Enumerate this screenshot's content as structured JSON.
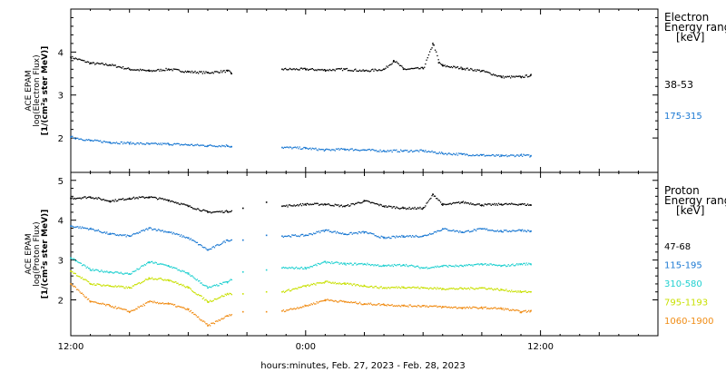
{
  "colors": {
    "axis": "#000000",
    "background": "#ffffff",
    "black": "#000000",
    "blue": "#1a78d2",
    "cyan": "#20d0d0",
    "yellow": "#c8e000",
    "orange": "#f08c14"
  },
  "figure": {
    "xlabel": "hours:minutes, Feb. 27, 2023 - Feb. 28, 2023",
    "x_tick_labels": [
      "12:00",
      "0:00",
      "12:00"
    ]
  },
  "chart_data": [
    {
      "type": "scatter",
      "panel": "electron",
      "ylabel": [
        "ACE EPAM",
        "log(Electron Flux)",
        "[1/(cm²s ster MeV)]"
      ],
      "legend_title": [
        "Electron",
        "Energy range",
        "[keV]"
      ],
      "legend_placement": "right",
      "grid": false,
      "xlim": [
        -12,
        18
      ],
      "ylim": [
        1.2,
        5.0
      ],
      "y_ticks": [
        2,
        3,
        4
      ],
      "x_ticks": [
        -12,
        0,
        12
      ],
      "x_unit": "hours relative to Feb. 28, 2023 0:00",
      "series": [
        {
          "name": "38-53",
          "color": "#000000",
          "x": [
            -12,
            -11,
            -10,
            -9,
            -8,
            -7,
            -6,
            -5,
            -4,
            -3.8,
            -1.2,
            0,
            1,
            2,
            3,
            4,
            4.5,
            5,
            6,
            6.5,
            6.8,
            7,
            8,
            9,
            10,
            11,
            11.5
          ],
          "y": [
            3.88,
            3.74,
            3.7,
            3.6,
            3.56,
            3.6,
            3.54,
            3.52,
            3.56,
            3.5,
            3.6,
            3.6,
            3.58,
            3.6,
            3.56,
            3.6,
            3.8,
            3.6,
            3.62,
            4.2,
            3.75,
            3.68,
            3.62,
            3.56,
            3.42,
            3.42,
            3.46
          ]
        },
        {
          "name": "175-315",
          "color": "#1a78d2",
          "x": [
            -12,
            -11,
            -10,
            -9,
            -8,
            -7,
            -6,
            -5,
            -4,
            -3.8,
            -1.2,
            0,
            1,
            2,
            3,
            4,
            5,
            6,
            7,
            8,
            9,
            10,
            11,
            11.5
          ],
          "y": [
            2.02,
            1.94,
            1.9,
            1.88,
            1.86,
            1.86,
            1.84,
            1.82,
            1.82,
            1.8,
            1.78,
            1.76,
            1.72,
            1.74,
            1.72,
            1.7,
            1.7,
            1.7,
            1.64,
            1.62,
            1.6,
            1.58,
            1.6,
            1.58
          ]
        }
      ]
    },
    {
      "type": "scatter",
      "panel": "proton",
      "ylabel": [
        "ACE EPAM",
        "log(Proton Flux)",
        "[1/(cm²s ster MeV)]"
      ],
      "legend_title": [
        "Proton",
        "Energy range",
        "[keV]"
      ],
      "legend_placement": "right",
      "grid": false,
      "xlim": [
        -12,
        18
      ],
      "ylim": [
        1.1,
        5.2
      ],
      "y_ticks": [
        2,
        3,
        4,
        5
      ],
      "x_ticks": [
        -12,
        0,
        12
      ],
      "x_unit": "hours relative to Feb. 28, 2023 0:00",
      "series": [
        {
          "name": "47-68",
          "color": "#000000",
          "x": [
            -12,
            -11,
            -10,
            -9,
            -8,
            -7,
            -6,
            -5,
            -4,
            -3.2,
            -2,
            -1.2,
            0,
            1,
            2,
            3,
            4,
            5,
            6,
            6.5,
            7,
            8,
            9,
            10,
            11,
            11.5
          ],
          "y": [
            4.55,
            4.58,
            4.48,
            4.55,
            4.58,
            4.5,
            4.35,
            4.2,
            4.22,
            4.3,
            4.45,
            4.35,
            4.4,
            4.4,
            4.35,
            4.48,
            4.35,
            4.3,
            4.3,
            4.65,
            4.38,
            4.45,
            4.38,
            4.4,
            4.4,
            4.38
          ]
        },
        {
          "name": "115-195",
          "color": "#1a78d2",
          "x": [
            -12,
            -11,
            -10,
            -9,
            -8,
            -7,
            -6,
            -5,
            -4,
            -3.2,
            -2,
            -1.2,
            0,
            1,
            2,
            3,
            4,
            5,
            6,
            7,
            8,
            9,
            10,
            11,
            11.5
          ],
          "y": [
            3.85,
            3.78,
            3.65,
            3.6,
            3.8,
            3.7,
            3.55,
            3.25,
            3.5,
            3.5,
            3.62,
            3.6,
            3.62,
            3.75,
            3.65,
            3.7,
            3.55,
            3.6,
            3.6,
            3.78,
            3.7,
            3.78,
            3.72,
            3.75,
            3.72
          ]
        },
        {
          "name": "310-580",
          "color": "#20d0d0",
          "x": [
            -12,
            -11,
            -10,
            -9,
            -8,
            -7,
            -6,
            -5,
            -4,
            -3.2,
            -2,
            -1.2,
            0,
            1,
            2,
            3,
            4,
            5,
            6,
            7,
            8,
            9,
            10,
            11,
            11.5
          ],
          "y": [
            3.05,
            2.75,
            2.7,
            2.65,
            2.95,
            2.85,
            2.65,
            2.3,
            2.45,
            2.7,
            2.75,
            2.8,
            2.8,
            2.95,
            2.9,
            2.9,
            2.85,
            2.88,
            2.8,
            2.85,
            2.85,
            2.9,
            2.85,
            2.9,
            2.9
          ]
        },
        {
          "name": "795-1193",
          "color": "#c8e000",
          "x": [
            -12,
            -11,
            -10,
            -9,
            -8,
            -7,
            -6,
            -5,
            -4,
            -3.2,
            -2,
            -1.2,
            0,
            1,
            2,
            3,
            4,
            5,
            6,
            7,
            8,
            9,
            10,
            11,
            11.5
          ],
          "y": [
            2.72,
            2.4,
            2.35,
            2.3,
            2.55,
            2.5,
            2.3,
            1.95,
            2.15,
            2.15,
            2.2,
            2.2,
            2.35,
            2.45,
            2.4,
            2.35,
            2.3,
            2.32,
            2.3,
            2.28,
            2.28,
            2.3,
            2.25,
            2.2,
            2.2
          ]
        },
        {
          "name": "1060-1900",
          "color": "#f08c14",
          "x": [
            -12,
            -11,
            -10,
            -9,
            -8,
            -7,
            -6,
            -5,
            -4,
            -3.2,
            -2,
            -1.2,
            0,
            1,
            2,
            3,
            4,
            5,
            6,
            7,
            8,
            9,
            10,
            11,
            11.5
          ],
          "y": [
            2.4,
            1.95,
            1.85,
            1.7,
            1.95,
            1.9,
            1.75,
            1.35,
            1.6,
            1.7,
            1.7,
            1.72,
            1.85,
            2.0,
            1.95,
            1.9,
            1.88,
            1.85,
            1.85,
            1.82,
            1.8,
            1.8,
            1.78,
            1.7,
            1.72
          ]
        }
      ]
    }
  ]
}
